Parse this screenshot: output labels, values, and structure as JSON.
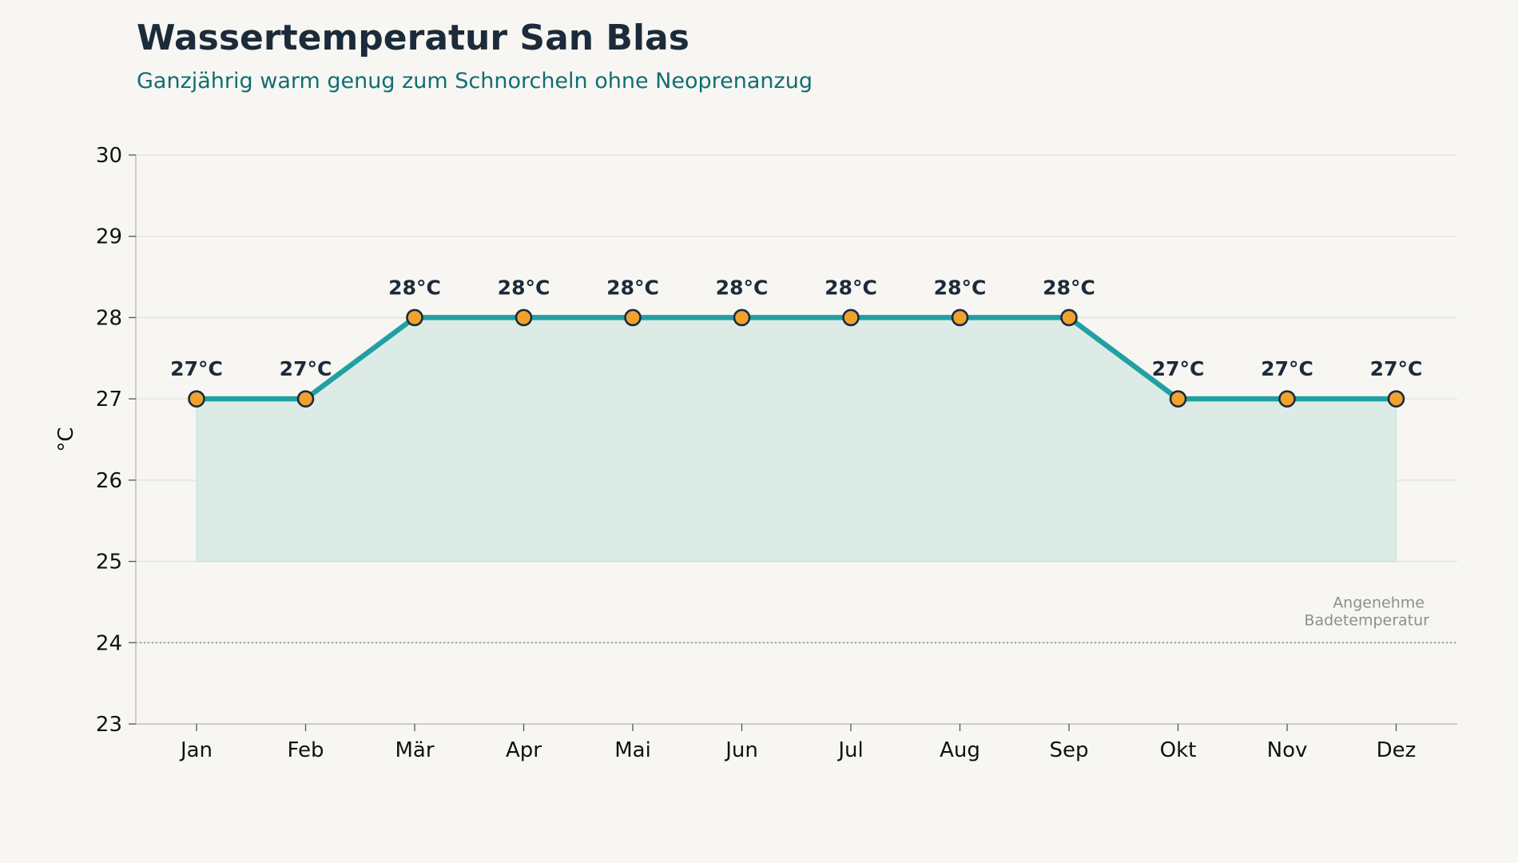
{
  "title": "Wassertemperatur San Blas",
  "subtitle": "Ganzjährig warm genug zum Schnorcheln ohne Neoprenanzug",
  "colors": {
    "background": "#f7f6f2",
    "line": "#21a0a3",
    "fill": "#dcebe6",
    "marker": "#f0a22e",
    "marker_edge": "#1c2b3a",
    "reference_line": "#9a9a9a"
  },
  "chart_data": {
    "type": "line",
    "title": "Wassertemperatur San Blas",
    "subtitle": "Ganzjährig warm genug zum Schnorcheln ohne Neoprenanzug",
    "xlabel": "",
    "ylabel": "°C",
    "categories": [
      "Jan",
      "Feb",
      "Mär",
      "Apr",
      "Mai",
      "Jun",
      "Jul",
      "Aug",
      "Sep",
      "Okt",
      "Nov",
      "Dez"
    ],
    "series": [
      {
        "values": [
          27,
          27,
          28,
          28,
          28,
          28,
          28,
          28,
          28,
          27,
          27,
          27
        ],
        "labels": [
          "27°C",
          "27°C",
          "28°C",
          "28°C",
          "28°C",
          "28°C",
          "28°C",
          "28°C",
          "28°C",
          "27°C",
          "27°C",
          "27°C"
        ]
      }
    ],
    "area_baseline": 25,
    "ylim": [
      23,
      30
    ],
    "yticks": [
      23,
      24,
      25,
      26,
      27,
      28,
      29,
      30
    ],
    "grid": "horizontal",
    "reference_line": {
      "value": 24,
      "label_lines": [
        "Angenehme",
        "Badetemperatur"
      ]
    }
  }
}
